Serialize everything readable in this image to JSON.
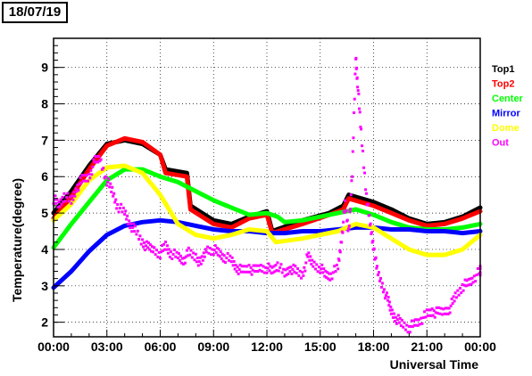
{
  "date_label": "18/07/19",
  "chart_data": {
    "type": "line",
    "xlabel": "Universal Time",
    "ylabel": "Temperature(degree)",
    "xlim": [
      0,
      24
    ],
    "ylim": [
      1.6,
      9.8
    ],
    "x_ticks": [
      {
        "value": 0,
        "label": "00:00"
      },
      {
        "value": 3,
        "label": "03:00"
      },
      {
        "value": 6,
        "label": "06:00"
      },
      {
        "value": 9,
        "label": "09:00"
      },
      {
        "value": 12,
        "label": "12:00"
      },
      {
        "value": 15,
        "label": "15:00"
      },
      {
        "value": 18,
        "label": "18:00"
      },
      {
        "value": 21,
        "label": "21:00"
      },
      {
        "value": 24,
        "label": "00:00"
      }
    ],
    "y_ticks": [
      {
        "value": 2,
        "label": "2"
      },
      {
        "value": 3,
        "label": "3"
      },
      {
        "value": 4,
        "label": "4"
      },
      {
        "value": 5,
        "label": "5"
      },
      {
        "value": 6,
        "label": "6"
      },
      {
        "value": 7,
        "label": "7"
      },
      {
        "value": 8,
        "label": "8"
      },
      {
        "value": 9,
        "label": "9"
      }
    ],
    "grid": true,
    "legend_position": "right",
    "series": [
      {
        "name": "Top1",
        "color": "#000000",
        "style": "thick-line",
        "points": [
          [
            0,
            5.0
          ],
          [
            1,
            5.6
          ],
          [
            2,
            6.3
          ],
          [
            3,
            6.9
          ],
          [
            4,
            7.0
          ],
          [
            5,
            6.9
          ],
          [
            6,
            6.6
          ],
          [
            6.3,
            6.2
          ],
          [
            7.5,
            6.1
          ],
          [
            7.7,
            5.2
          ],
          [
            9,
            4.8
          ],
          [
            10,
            4.7
          ],
          [
            11,
            4.9
          ],
          [
            12,
            5.05
          ],
          [
            12.3,
            4.5
          ],
          [
            14,
            4.8
          ],
          [
            15.5,
            5.0
          ],
          [
            16.3,
            5.2
          ],
          [
            16.6,
            5.5
          ],
          [
            18,
            5.3
          ],
          [
            19,
            5.1
          ],
          [
            20,
            4.85
          ],
          [
            21,
            4.7
          ],
          [
            22,
            4.75
          ],
          [
            23,
            4.9
          ],
          [
            24,
            5.15
          ]
        ]
      },
      {
        "name": "Top2",
        "color": "#ff0000",
        "style": "thick-line",
        "points": [
          [
            0,
            4.85
          ],
          [
            1,
            5.45
          ],
          [
            2,
            6.2
          ],
          [
            3,
            6.85
          ],
          [
            4,
            7.05
          ],
          [
            5,
            6.95
          ],
          [
            6,
            6.6
          ],
          [
            6.3,
            6.1
          ],
          [
            7.5,
            6.0
          ],
          [
            7.7,
            5.1
          ],
          [
            9,
            4.7
          ],
          [
            10,
            4.6
          ],
          [
            11,
            4.85
          ],
          [
            12,
            4.95
          ],
          [
            12.3,
            4.45
          ],
          [
            14,
            4.7
          ],
          [
            15.5,
            4.95
          ],
          [
            16.3,
            5.1
          ],
          [
            16.6,
            5.4
          ],
          [
            18,
            5.2
          ],
          [
            19,
            5.0
          ],
          [
            20,
            4.8
          ],
          [
            21,
            4.65
          ],
          [
            22,
            4.7
          ],
          [
            23,
            4.85
          ],
          [
            24,
            5.05
          ]
        ]
      },
      {
        "name": "Center",
        "color": "#00ff00",
        "style": "thick-line",
        "points": [
          [
            0,
            4.05
          ],
          [
            1,
            4.7
          ],
          [
            2,
            5.3
          ],
          [
            3,
            5.9
          ],
          [
            4,
            6.2
          ],
          [
            5,
            6.2
          ],
          [
            6,
            6.0
          ],
          [
            7,
            5.85
          ],
          [
            8,
            5.6
          ],
          [
            9,
            5.35
          ],
          [
            10,
            5.15
          ],
          [
            11,
            4.95
          ],
          [
            12,
            5.0
          ],
          [
            12.6,
            4.9
          ],
          [
            13,
            4.75
          ],
          [
            14,
            4.8
          ],
          [
            15,
            4.9
          ],
          [
            16,
            5.0
          ],
          [
            17,
            5.1
          ],
          [
            18,
            4.95
          ],
          [
            19,
            4.75
          ],
          [
            20,
            4.6
          ],
          [
            21,
            4.55
          ],
          [
            22,
            4.55
          ],
          [
            23,
            4.6
          ],
          [
            24,
            4.7
          ]
        ]
      },
      {
        "name": "Mirror",
        "color": "#0000ff",
        "style": "thick-line",
        "points": [
          [
            0,
            2.95
          ],
          [
            1,
            3.4
          ],
          [
            2,
            3.95
          ],
          [
            3,
            4.4
          ],
          [
            4,
            4.65
          ],
          [
            5,
            4.75
          ],
          [
            6,
            4.8
          ],
          [
            7,
            4.75
          ],
          [
            8,
            4.65
          ],
          [
            9,
            4.55
          ],
          [
            10,
            4.5
          ],
          [
            11,
            4.5
          ],
          [
            12,
            4.45
          ],
          [
            13,
            4.45
          ],
          [
            14,
            4.5
          ],
          [
            15,
            4.5
          ],
          [
            16,
            4.55
          ],
          [
            17,
            4.6
          ],
          [
            18,
            4.6
          ],
          [
            19,
            4.55
          ],
          [
            20,
            4.55
          ],
          [
            21,
            4.5
          ],
          [
            22,
            4.5
          ],
          [
            23,
            4.45
          ],
          [
            24,
            4.5
          ]
        ]
      },
      {
        "name": "Dome",
        "color": "#ffff00",
        "style": "thick-line",
        "points": [
          [
            0,
            4.8
          ],
          [
            1,
            5.25
          ],
          [
            2,
            5.9
          ],
          [
            3,
            6.25
          ],
          [
            4,
            6.3
          ],
          [
            5,
            6.1
          ],
          [
            6,
            5.5
          ],
          [
            7,
            4.7
          ],
          [
            8,
            4.4
          ],
          [
            9,
            4.3
          ],
          [
            10,
            4.4
          ],
          [
            11,
            4.55
          ],
          [
            12,
            4.5
          ],
          [
            12.5,
            4.2
          ],
          [
            14,
            4.3
          ],
          [
            15,
            4.4
          ],
          [
            16,
            4.5
          ],
          [
            17,
            4.7
          ],
          [
            18,
            4.6
          ],
          [
            19,
            4.3
          ],
          [
            20,
            4.0
          ],
          [
            21,
            3.85
          ],
          [
            22,
            3.85
          ],
          [
            23,
            4.0
          ],
          [
            24,
            4.4
          ]
        ]
      },
      {
        "name": "Out",
        "color": "#ff00ff",
        "style": "scatter",
        "points": [
          [
            0,
            5.4
          ],
          [
            0.3,
            5.2
          ],
          [
            0.6,
            5.5
          ],
          [
            1,
            5.3
          ],
          [
            1.3,
            5.7
          ],
          [
            1.6,
            5.9
          ],
          [
            2,
            6.0
          ],
          [
            2.3,
            6.4
          ],
          [
            2.6,
            6.5
          ],
          [
            3,
            5.9
          ],
          [
            3.3,
            5.6
          ],
          [
            3.6,
            5.2
          ],
          [
            4,
            5.0
          ],
          [
            4.3,
            4.7
          ],
          [
            4.6,
            4.5
          ],
          [
            5,
            4.2
          ],
          [
            5.3,
            4.05
          ],
          [
            5.6,
            4.0
          ],
          [
            6,
            3.9
          ],
          [
            6.3,
            4.1
          ],
          [
            6.6,
            3.9
          ],
          [
            7,
            3.8
          ],
          [
            7.3,
            3.7
          ],
          [
            7.6,
            3.9
          ],
          [
            8,
            3.8
          ],
          [
            8.3,
            3.6
          ],
          [
            8.6,
            4.0
          ],
          [
            9,
            4.0
          ],
          [
            9.3,
            3.9
          ],
          [
            9.6,
            3.8
          ],
          [
            10,
            3.7
          ],
          [
            10.3,
            3.5
          ],
          [
            10.6,
            3.4
          ],
          [
            11,
            3.5
          ],
          [
            11.3,
            3.4
          ],
          [
            11.6,
            3.5
          ],
          [
            12,
            3.5
          ],
          [
            12.3,
            3.4
          ],
          [
            12.6,
            3.6
          ],
          [
            13,
            3.3
          ],
          [
            13.3,
            3.5
          ],
          [
            13.6,
            3.4
          ],
          [
            14,
            3.3
          ],
          [
            14.3,
            3.8
          ],
          [
            14.6,
            3.6
          ],
          [
            15,
            3.5
          ],
          [
            15.3,
            3.3
          ],
          [
            15.6,
            3.3
          ],
          [
            16,
            3.5
          ],
          [
            16.2,
            4.3
          ],
          [
            16.4,
            5.2
          ],
          [
            16.6,
            4.5
          ],
          [
            16.8,
            6.0
          ],
          [
            17,
            9.3
          ],
          [
            17.1,
            8.6
          ],
          [
            17.3,
            7.2
          ],
          [
            17.6,
            5.5
          ],
          [
            17.8,
            4.7
          ],
          [
            18,
            4.1
          ],
          [
            18.2,
            3.4
          ],
          [
            18.5,
            3.0
          ],
          [
            18.8,
            2.6
          ],
          [
            19,
            2.3
          ],
          [
            19.3,
            2.1
          ],
          [
            19.6,
            1.95
          ],
          [
            20,
            1.85
          ],
          [
            20.3,
            1.95
          ],
          [
            20.6,
            2.05
          ],
          [
            21,
            2.2
          ],
          [
            21.3,
            2.3
          ],
          [
            21.6,
            2.25
          ],
          [
            22,
            2.3
          ],
          [
            22.3,
            2.4
          ],
          [
            22.6,
            2.7
          ],
          [
            23,
            3.0
          ],
          [
            23.3,
            3.05
          ],
          [
            23.6,
            3.2
          ],
          [
            24,
            3.4
          ]
        ]
      }
    ]
  }
}
